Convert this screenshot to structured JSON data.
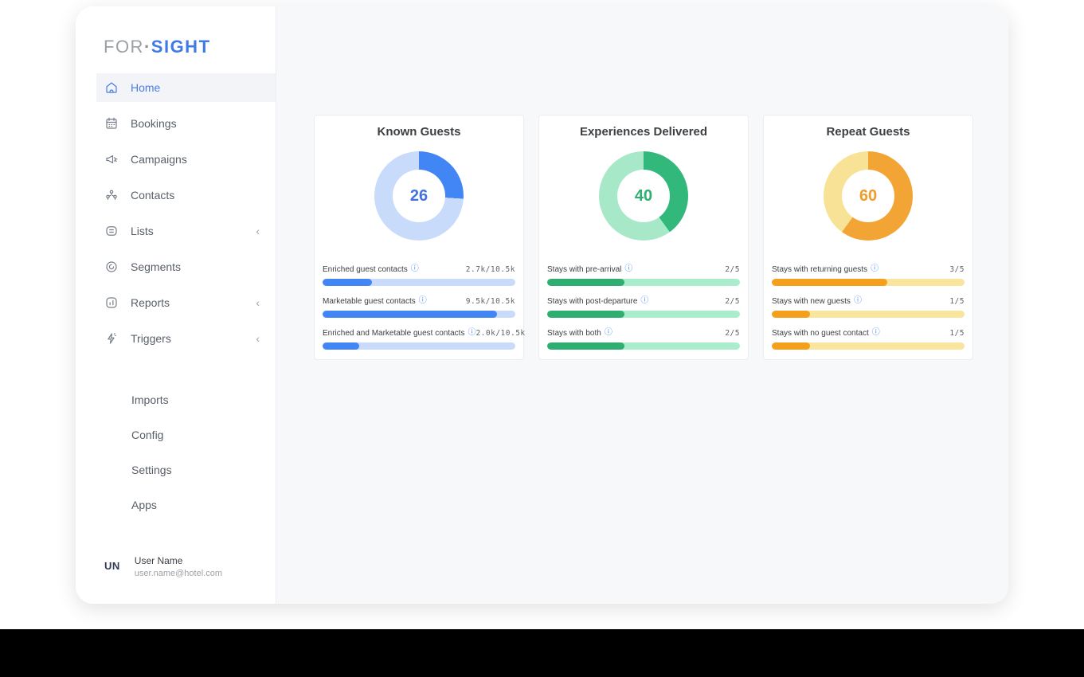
{
  "logo": {
    "gray": "FOR",
    "dot": "·",
    "blue": "SIGHT"
  },
  "glyphs": {
    "info": "ⓘ",
    "chevron": "‹"
  },
  "sidebar": {
    "items": [
      {
        "label": "Home"
      },
      {
        "label": "Bookings"
      },
      {
        "label": "Campaigns"
      },
      {
        "label": "Contacts"
      },
      {
        "label": "Lists"
      },
      {
        "label": "Segments"
      },
      {
        "label": "Reports"
      },
      {
        "label": "Triggers"
      }
    ],
    "secondary": [
      {
        "label": "Imports"
      },
      {
        "label": "Config"
      },
      {
        "label": "Settings"
      },
      {
        "label": "Apps"
      }
    ],
    "user": {
      "initials": "UN",
      "name": "User Name",
      "email": "user.name@hotel.com"
    }
  },
  "cards": [
    {
      "title": "Known Guests",
      "center_value": "26",
      "percent": 26,
      "color": "#4285F4",
      "track": "#C8DBFB",
      "value_color": "#4274E0",
      "bar_color": "#4285F4",
      "bar_track": "#C8DBFB",
      "rows": [
        {
          "label": "Enriched guest contacts",
          "value": "2.7k/10.5k",
          "percent": 25.7
        },
        {
          "label": "Marketable guest contacts",
          "value": "9.5k/10.5k",
          "percent": 90.5
        },
        {
          "label": "Enriched and Marketable guest contacts",
          "value": "2.0k/10.5k",
          "percent": 19
        }
      ]
    },
    {
      "title": "Experiences Delivered",
      "center_value": "40",
      "percent": 40,
      "color": "#31B87A",
      "track": "#A7E8C8",
      "value_color": "#2EAE71",
      "bar_color": "#2EAE71",
      "bar_track": "#AAEDCC",
      "rows": [
        {
          "label": "Stays with pre-arrival",
          "value": "2/5",
          "percent": 40
        },
        {
          "label": "Stays with post-departure",
          "value": "2/5",
          "percent": 40
        },
        {
          "label": "Stays with both",
          "value": "2/5",
          "percent": 40
        }
      ]
    },
    {
      "title": "Repeat Guests",
      "center_value": "60",
      "percent": 60,
      "color": "#F2A434",
      "track": "#F8E296",
      "value_color": "#EE9D28",
      "bar_color": "#F4A01D",
      "bar_track": "#FAE59E",
      "rows": [
        {
          "label": "Stays with returning guests",
          "value": "3/5",
          "percent": 60
        },
        {
          "label": "Stays with new guests",
          "value": "1/5",
          "percent": 20
        },
        {
          "label": "Stays with no guest contact",
          "value": "1/5",
          "percent": 20
        }
      ]
    }
  ]
}
